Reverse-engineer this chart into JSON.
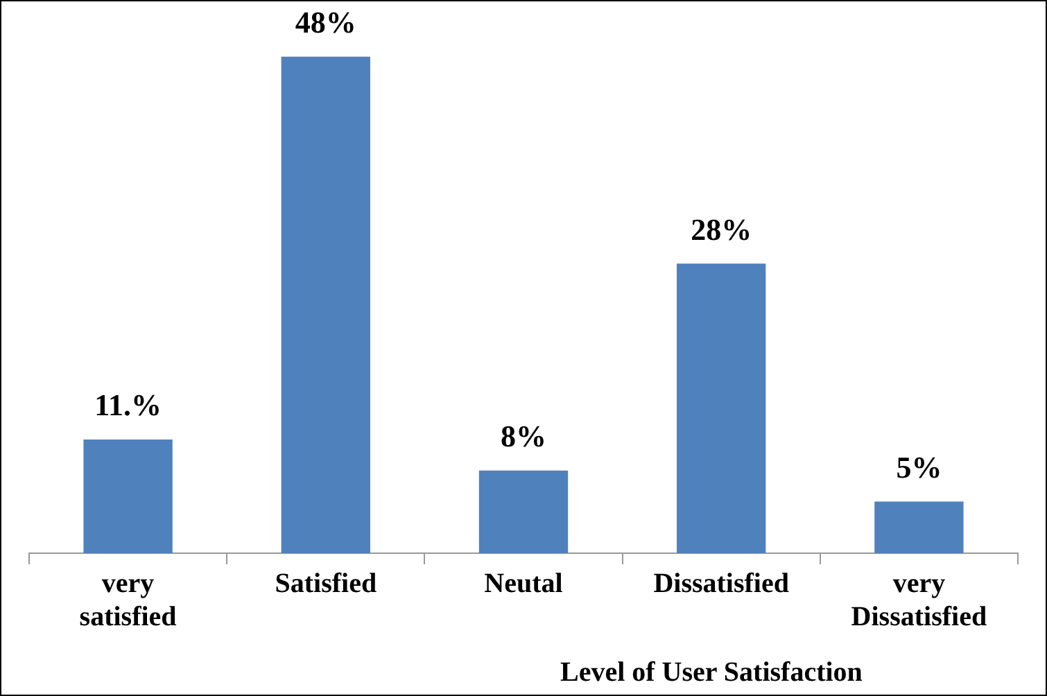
{
  "chart_data": {
    "type": "bar",
    "xlabel": "Level of User Satisfaction",
    "categories": [
      "very satisfied",
      "Satisfied",
      "Neutal",
      "Dissatisfied",
      "very Dissatisfied"
    ],
    "values": [
      11,
      48,
      8,
      28,
      5
    ],
    "value_labels": [
      "11.%",
      "48%",
      "8%",
      "28%",
      "5%"
    ],
    "color": "#4f81bd",
    "legend": false
  }
}
